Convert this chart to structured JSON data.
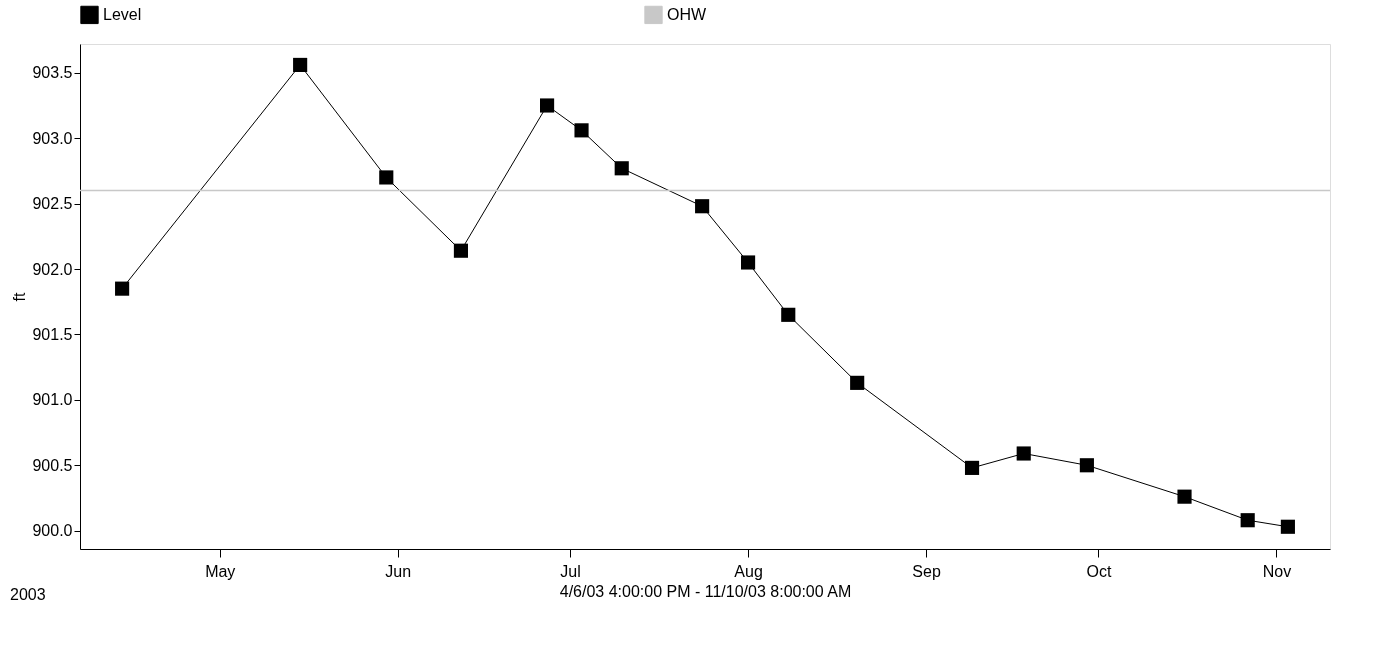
{
  "chart_data": {
    "type": "line",
    "xlabel": "4/6/03 4:00:00 PM - 11/10/03 8:00:00 AM",
    "ylabel": "ft",
    "annotations": [
      "2003"
    ],
    "x": [
      "2003-04-14",
      "2003-05-15",
      "2003-05-30",
      "2003-06-12",
      "2003-06-27",
      "2003-07-03",
      "2003-07-10",
      "2003-07-24",
      "2003-08-01",
      "2003-08-08",
      "2003-08-20",
      "2003-09-09",
      "2003-09-18",
      "2003-09-29",
      "2003-10-16",
      "2003-10-27",
      "2003-11-03"
    ],
    "series": [
      {
        "name": "Level",
        "color": "#000000",
        "values": [
          901.85,
          903.56,
          902.7,
          902.14,
          903.25,
          903.06,
          902.77,
          902.48,
          902.05,
          901.65,
          901.13,
          900.48,
          900.59,
          900.5,
          900.26,
          900.08,
          900.03
        ]
      }
    ],
    "marker": "square",
    "line_style": "solid",
    "ref_lines": [
      {
        "axis": "y",
        "value": 902.6,
        "label": "OHW",
        "color": "#c8c8c8"
      }
    ],
    "legend": "top",
    "grid": false,
    "xlim": [
      "2003-04-06T16:00",
      "2003-11-10T08:00"
    ],
    "xticks": [
      {
        "value": "2003-05-01",
        "label": "May"
      },
      {
        "value": "2003-06-01",
        "label": "Jun"
      },
      {
        "value": "2003-07-01",
        "label": "Jul"
      },
      {
        "value": "2003-08-01",
        "label": "Aug"
      },
      {
        "value": "2003-09-01",
        "label": "Sep"
      },
      {
        "value": "2003-10-01",
        "label": "Oct"
      },
      {
        "value": "2003-11-01",
        "label": "Nov"
      }
    ],
    "ylim": [
      899.86,
      903.72
    ],
    "yticks": [
      {
        "value": 900,
        "label": "900.0"
      },
      900.5,
      {
        "value": 901,
        "label": "901.0"
      },
      901.5,
      {
        "value": 902,
        "label": "902.0"
      },
      902.5,
      {
        "value": 903,
        "label": "903.0"
      },
      903.5
    ]
  }
}
